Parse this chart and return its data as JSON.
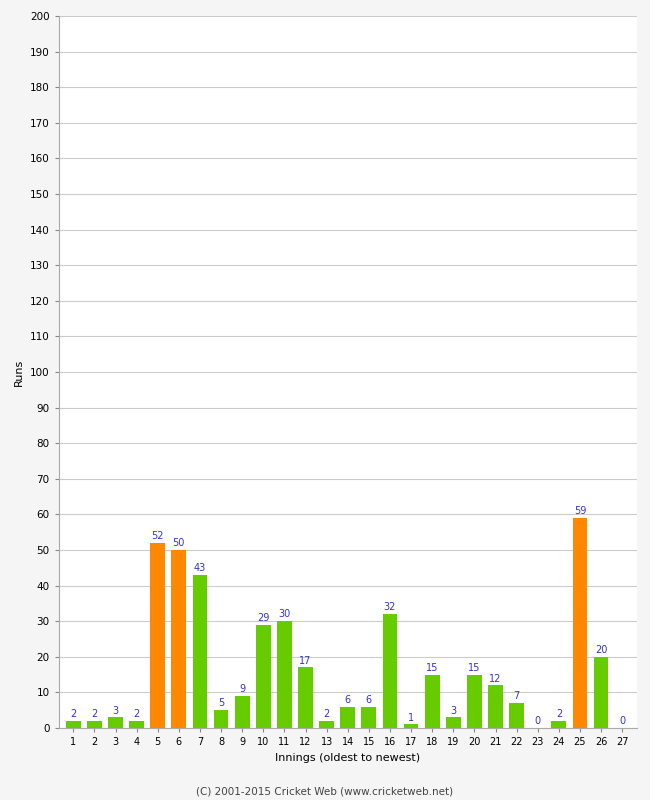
{
  "values": [
    2,
    2,
    3,
    2,
    52,
    50,
    43,
    5,
    9,
    29,
    30,
    17,
    2,
    6,
    6,
    32,
    1,
    15,
    3,
    15,
    12,
    7,
    0,
    2,
    59,
    20,
    0
  ],
  "innings": [
    1,
    2,
    3,
    4,
    5,
    6,
    7,
    8,
    9,
    10,
    11,
    12,
    13,
    14,
    15,
    16,
    17,
    18,
    19,
    20,
    21,
    22,
    23,
    24,
    25,
    26,
    27
  ],
  "orange_indices": [
    4,
    5,
    24
  ],
  "bar_color_default": "#66cc00",
  "bar_color_highlight": "#ff8800",
  "xlabel": "Innings (oldest to newest)",
  "ylabel": "Runs",
  "ylim": [
    0,
    200
  ],
  "yticks": [
    0,
    10,
    20,
    30,
    40,
    50,
    60,
    70,
    80,
    90,
    100,
    110,
    120,
    130,
    140,
    150,
    160,
    170,
    180,
    190,
    200
  ],
  "label_color": "#3333cc",
  "label_fontsize": 7,
  "footer": "(C) 2001-2015 Cricket Web (www.cricketweb.net)",
  "bg_color": "#f5f5f5",
  "plot_bg_color": "#ffffff",
  "grid_color": "#cccccc"
}
